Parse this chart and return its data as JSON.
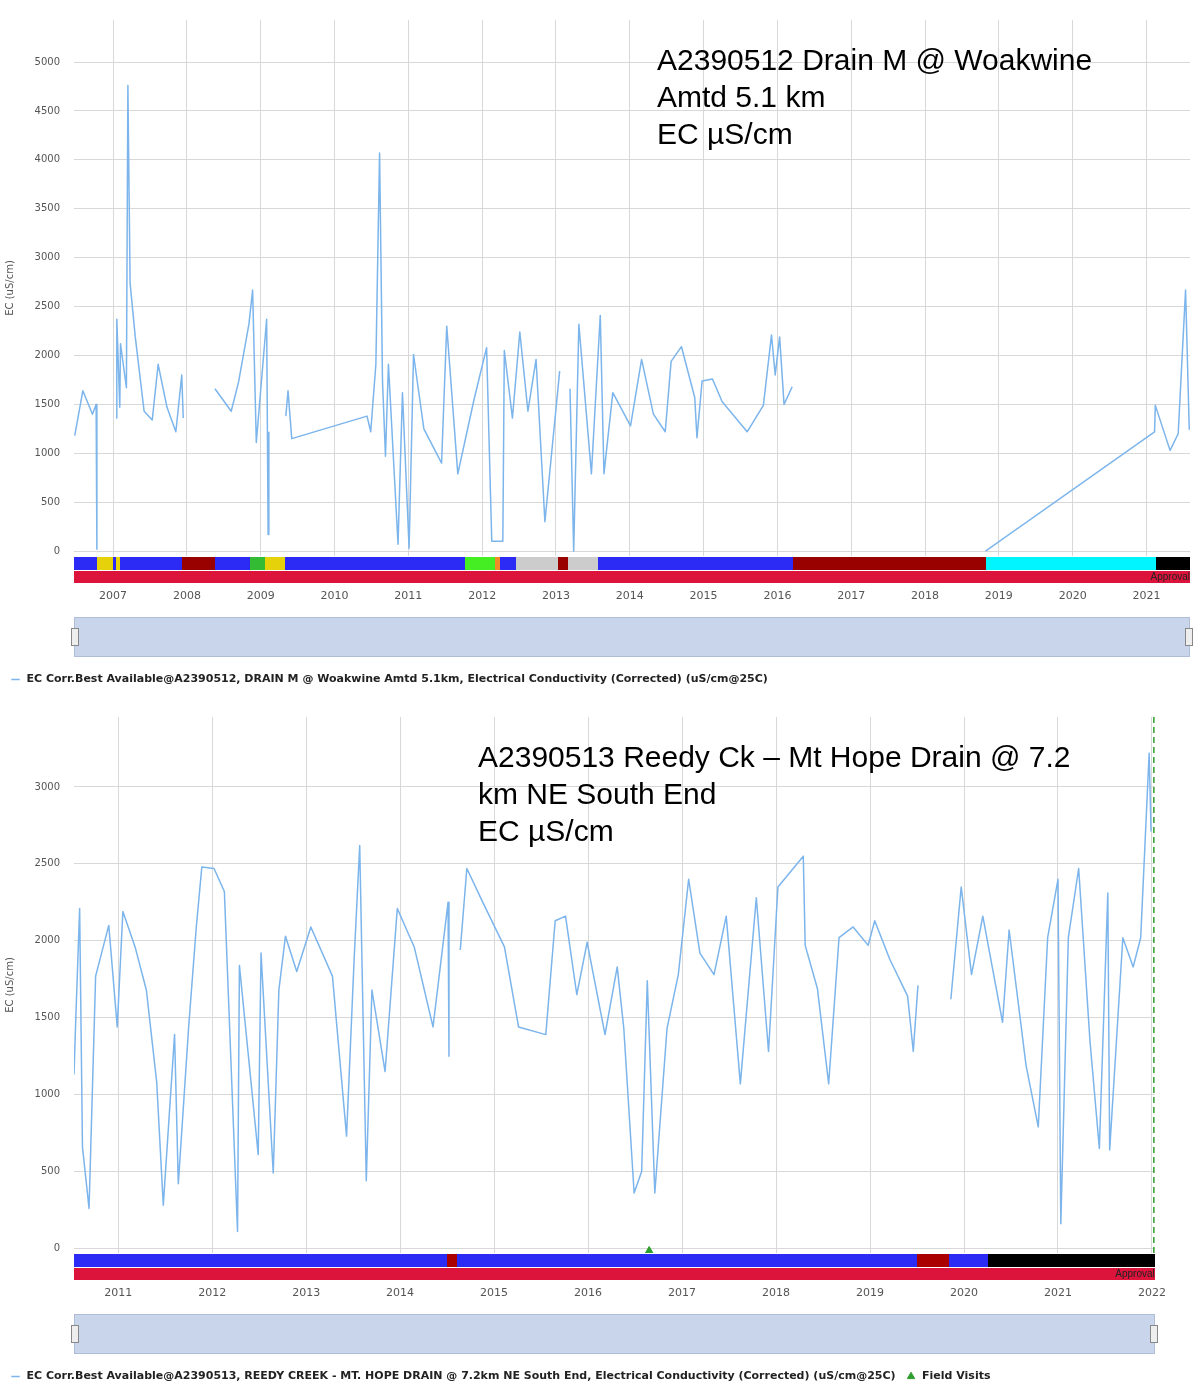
{
  "chart_data": [
    {
      "type": "line",
      "title": "A2390512 Drain M @ Woakwine Amtd 5.1 km",
      "subtitle": "EC µS/cm",
      "ylabel": "EC (uS/cm)",
      "xlim": [
        2006.47,
        2021.59
      ],
      "xticks": [
        2007,
        2008,
        2009,
        2010,
        2011,
        2012,
        2013,
        2014,
        2015,
        2016,
        2017,
        2018,
        2019,
        2020,
        2021
      ],
      "ylim": [
        -50,
        5430
      ],
      "yticks": [
        0,
        500,
        1000,
        1500,
        2000,
        2500,
        3000,
        3500,
        4000,
        4500,
        5000
      ],
      "grid": true,
      "legend": "bottom",
      "marker": "none",
      "annotations": [
        "Approval"
      ],
      "series": [
        {
          "name": "EC Corr.Best Available@A2390512, DRAIN M @ Woakwine Amtd 5.1km, Electrical Conductivity (Corrected) (uS/cm@25C)",
          "color": "#7cb5ec",
          "x": [
            2006.48,
            2006.59,
            2006.72,
            2006.77,
            2006.78,
            2006.9,
            2007.04,
            2007.05,
            2007.09,
            2007.1,
            2007.18,
            2007.2,
            2007.23,
            2007.3,
            2007.42,
            2007.53,
            2007.61,
            2007.73,
            2007.85,
            2007.93,
            2007.95,
            2008.1,
            2008.38,
            2008.6,
            2008.7,
            2008.84,
            2008.89,
            2008.94,
            2009.08,
            2009.1,
            2009.11,
            2009.2,
            2009.34,
            2009.37,
            2009.42,
            2010.44,
            2010.49,
            2010.56,
            2010.61,
            2010.65,
            2010.69,
            2010.73,
            2010.86,
            2010.92,
            2011.01,
            2011.07,
            2011.21,
            2011.45,
            2011.52,
            2011.67,
            2011.89,
            2012.06,
            2012.13,
            2012.28,
            2012.3,
            2012.41,
            2012.51,
            2012.62,
            2012.73,
            2012.85,
            2013.05,
            2013.12,
            2013.19,
            2013.24,
            2013.31,
            2013.48,
            2013.6,
            2013.65,
            2013.77,
            2014.01,
            2014.16,
            2014.32,
            2014.48,
            2014.56,
            2014.7,
            2014.88,
            2014.91,
            2014.98,
            2015.12,
            2015.25,
            2015.59,
            2015.81,
            2015.92,
            2015.97,
            2016.03,
            2016.09,
            2016.2,
            2017.5,
            2018.82,
            2021.11,
            2021.12,
            2021.32,
            2021.43,
            2021.5,
            2021.53,
            2021.58
          ],
          "values": [
            1180,
            1640,
            1400,
            1500,
            20,
            null,
            1360,
            2370,
            1470,
            2120,
            1670,
            4760,
            2740,
            2190,
            1430,
            1340,
            1910,
            1470,
            1220,
            1800,
            1360,
            null,
            1660,
            1430,
            1730,
            2320,
            2670,
            1110,
            2370,
            170,
            1220,
            null,
            1380,
            1640,
            1150,
            1380,
            1220,
            1910,
            4070,
            1730,
            970,
            1910,
            70,
            1620,
            30,
            2010,
            1250,
            900,
            2300,
            790,
            1550,
            2080,
            100,
            100,
            2050,
            1360,
            2240,
            1430,
            1960,
            300,
            1840,
            null,
            1660,
            0,
            2320,
            790,
            2410,
            790,
            1620,
            1280,
            1960,
            1400,
            1220,
            1940,
            2090,
            1570,
            1160,
            1740,
            1760,
            1530,
            1220,
            1490,
            2210,
            1800,
            2190,
            1500,
            1680,
            null,
            0,
            1220,
            1490,
            1030,
            1200,
            2230,
            2670,
            1240
          ]
        }
      ]
    },
    {
      "type": "line",
      "title": "A2390513 Reedy Ck – Mt Hope Drain @ 7.2 km NE South End",
      "subtitle": "EC µS/cm",
      "ylabel": "EC (uS/cm)",
      "xlim": [
        2010.53,
        2022.03
      ],
      "xticks": [
        2011,
        2012,
        2013,
        2014,
        2015,
        2016,
        2017,
        2018,
        2019,
        2020,
        2021,
        2022
      ],
      "ylim": [
        -30,
        3455
      ],
      "yticks": [
        0,
        500,
        1000,
        1500,
        2000,
        2500,
        3000
      ],
      "grid": true,
      "legend": "bottom",
      "marker": "none",
      "annotations": [
        "Approval"
      ],
      "ref_lines": [
        {
          "axis": "x",
          "value": 2022.02,
          "color": "#2e9e2e",
          "line_style": "dashed"
        }
      ],
      "series": [
        {
          "name": "EC Corr.Best Available@A2390513, REEDY CREEK - MT. HOPE DRAIN @ 7.2km NE South End, Electrical Conductivity (Corrected) (uS/cm@25C)",
          "color": "#7cb5ec",
          "x": [
            2010.53,
            2010.55,
            2010.59,
            2010.62,
            2010.69,
            2010.76,
            2010.9,
            2010.99,
            2011.05,
            2011.18,
            2011.3,
            2011.41,
            2011.48,
            2011.6,
            2011.64,
            2011.75,
            2011.83,
            2011.89,
            2012.02,
            2012.13,
            2012.27,
            2012.29,
            2012.49,
            2012.52,
            2012.65,
            2012.71,
            2012.78,
            2012.9,
            2013.05,
            2013.28,
            2013.43,
            2013.51,
            2013.57,
            2013.64,
            2013.7,
            2013.84,
            2013.97,
            2014.15,
            2014.35,
            2014.51,
            2014.52,
            2014.57,
            2014.64,
            2014.71,
            2014.88,
            2015.11,
            2015.26,
            2015.55,
            2015.65,
            2015.76,
            2015.88,
            2015.99,
            2016.18,
            2016.31,
            2016.38,
            2016.49,
            2016.57,
            2016.63,
            2016.71,
            2016.84,
            2016.96,
            2017.07,
            2017.19,
            2017.34,
            2017.47,
            2017.62,
            2017.79,
            2017.92,
            2018.02,
            2018.29,
            2018.31,
            2018.44,
            2018.56,
            2018.67,
            2018.82,
            2018.98,
            2019.05,
            2019.21,
            2019.4,
            2019.46,
            2019.51,
            2019.7,
            2019.86,
            2019.97,
            2020.08,
            2020.2,
            2020.41,
            2020.48,
            2020.66,
            2020.79,
            2020.89,
            2021.0,
            2021.03,
            2021.11,
            2021.22,
            2021.34,
            2021.44,
            2021.53,
            2021.55,
            2021.69,
            2021.8,
            2021.88,
            2021.97,
            2021.99
          ],
          "values": [
            1130,
            1510,
            2210,
            660,
            260,
            1770,
            2100,
            1440,
            2190,
            1960,
            1680,
            1080,
            280,
            1390,
            420,
            1440,
            2080,
            2480,
            2470,
            2320,
            110,
            1840,
            610,
            1920,
            490,
            1680,
            2030,
            1800,
            2090,
            1770,
            730,
            1870,
            2620,
            440,
            1680,
            1150,
            2210,
            1960,
            1440,
            2250,
            1250,
            null,
            1940,
            2470,
            2250,
            1960,
            1440,
            1390,
            2130,
            2160,
            1650,
            1990,
            1390,
            1830,
            1430,
            360,
            500,
            1740,
            360,
            1430,
            1780,
            2400,
            1920,
            1780,
            2160,
            1070,
            2280,
            1280,
            2350,
            2550,
            1970,
            1690,
            1070,
            2020,
            2090,
            1970,
            2130,
            1880,
            1640,
            1280,
            1710,
            null,
            1620,
            2350,
            1780,
            2160,
            1470,
            2070,
            1190,
            790,
            2020,
            2400,
            160,
            2020,
            2470,
            1350,
            650,
            2310,
            640,
            2020,
            1830,
            2020,
            3220,
            2710
          ]
        },
        {
          "name": "Field Visits",
          "type": "scatter",
          "marker": "triangle",
          "color": "#2e9e2e",
          "x": [
            2016.65
          ],
          "values": [
            -20
          ]
        }
      ]
    }
  ]
}
